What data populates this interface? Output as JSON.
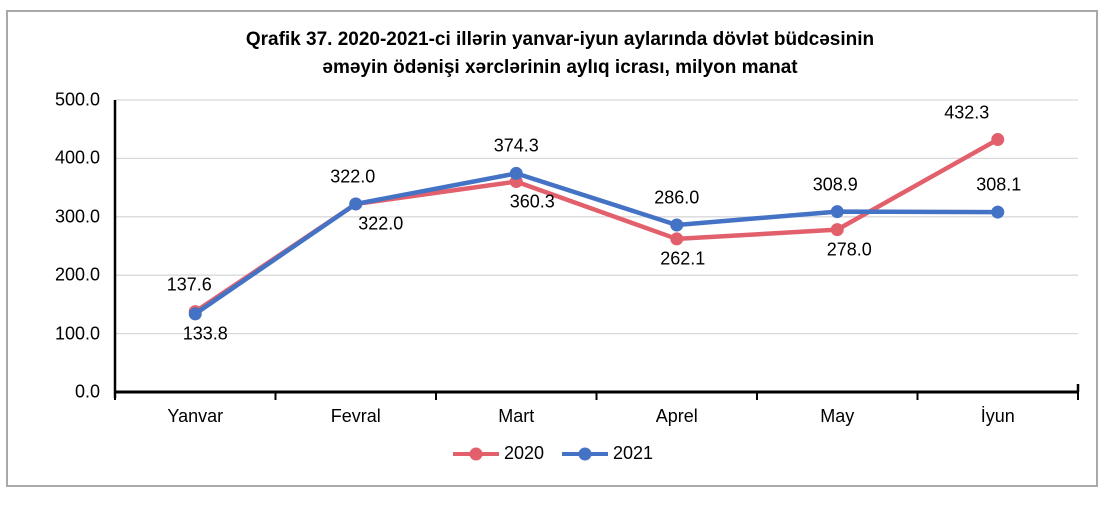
{
  "window": {
    "background": "#ffffff",
    "frame_border_color": "#a9a9a9"
  },
  "title": {
    "line1": "Qrafik 37. 2020-2021-ci illərin yanvar-iyun aylarında dövlət büdcəsinin",
    "line2": "əməyin ödənişi xərclərinin aylıq icrası, milyon manat"
  },
  "chart_data": {
    "type": "line",
    "title": "Qrafik 37. 2020-2021-ci illərin yanvar-iyun aylarında dövlət büdcəsinin əməyin ödənişi xərclərinin aylıq icrası, milyon manat",
    "categories": [
      "Yanvar",
      "Fevral",
      "Mart",
      "Aprel",
      "May",
      "İyun"
    ],
    "series": [
      {
        "name": "2020",
        "color": "#e2606b",
        "values": [
          137.6,
          322.0,
          360.3,
          262.1,
          278.0,
          432.3
        ],
        "label_positions": [
          "above",
          "below",
          "below",
          "below",
          "below",
          "above"
        ],
        "label_dx": [
          -6,
          25,
          16,
          6,
          12,
          -31
        ]
      },
      {
        "name": "2021",
        "color": "#4472c4",
        "values": [
          133.8,
          322.0,
          374.3,
          286.0,
          308.9,
          308.1
        ],
        "label_positions": [
          "below",
          "above",
          "above",
          "above",
          "above",
          "above"
        ],
        "label_dx": [
          10,
          -3,
          0,
          0,
          -2,
          1
        ]
      }
    ],
    "xlabel": "",
    "ylabel": "",
    "ylim": [
      0,
      500
    ],
    "ytick_labels": [
      "0.0",
      "100.0",
      "200.0",
      "300.0",
      "400.0",
      "500.0"
    ],
    "grid": true,
    "legend_position": "bottom",
    "axis_color": "#000000",
    "gridline_color": "#d9d9d9",
    "value_decimals": 1
  }
}
